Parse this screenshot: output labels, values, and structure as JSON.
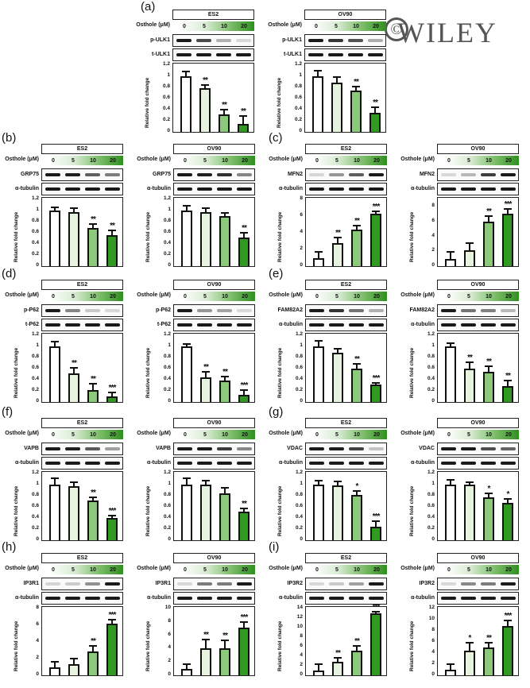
{
  "publisher_watermark": "WILEY",
  "common": {
    "dose_label": "Osthole (μM)",
    "doses": [
      "0",
      "5",
      "10",
      "20"
    ],
    "ylabel": "Relative fold change",
    "bar_colors": [
      "#ffffff",
      "#e6f3de",
      "#8cc97a",
      "#2f9a1f"
    ]
  },
  "chart_data": [
    {
      "panel": "(a)",
      "cell": "ES2",
      "type": "bar",
      "blots": [
        "p-ULK1",
        "t-ULK1"
      ],
      "categories": [
        "0",
        "5",
        "10",
        "20"
      ],
      "values": [
        1.0,
        0.78,
        0.32,
        0.15
      ],
      "errors": [
        0.08,
        0.07,
        0.08,
        0.14
      ],
      "significance": [
        "",
        "**",
        "**",
        "**"
      ],
      "ylim": [
        0,
        1.2
      ],
      "ticks": [
        "0",
        "0.2",
        "0.4",
        "0.6",
        "0.8",
        "1",
        "1.2"
      ],
      "ylabel": "Relative fold change"
    },
    {
      "panel": "(a)",
      "cell": "OV90",
      "type": "bar",
      "blots": [
        "p-ULK1",
        "t-ULK1"
      ],
      "categories": [
        "0",
        "5",
        "10",
        "20"
      ],
      "values": [
        1.0,
        0.88,
        0.75,
        0.34
      ],
      "errors": [
        0.1,
        0.1,
        0.06,
        0.11
      ],
      "significance": [
        "",
        "",
        "**",
        "**"
      ],
      "ylim": [
        0,
        1.2
      ],
      "ticks": [
        "0",
        "0.2",
        "0.4",
        "0.6",
        "0.8",
        "1",
        "1.2"
      ],
      "ylabel": "Relative fold change"
    },
    {
      "panel": "(b)",
      "cell": "ES2",
      "type": "bar",
      "blots": [
        "GRP75",
        "α-tubulin"
      ],
      "categories": [
        "0",
        "5",
        "10",
        "20"
      ],
      "values": [
        1.0,
        0.97,
        0.69,
        0.56
      ],
      "errors": [
        0.06,
        0.07,
        0.07,
        0.08
      ],
      "significance": [
        "",
        "",
        "**",
        "**"
      ],
      "ylim": [
        0,
        1.2
      ],
      "ticks": [
        "0",
        "0.2",
        "0.4",
        "0.6",
        "0.8",
        "1",
        "1.2"
      ],
      "ylabel": "Relative fold change"
    },
    {
      "panel": "(b)",
      "cell": "OV90",
      "type": "bar",
      "blots": [
        "GRP75",
        "α-tubulin"
      ],
      "categories": [
        "0",
        "5",
        "10",
        "20"
      ],
      "values": [
        1.0,
        0.97,
        0.9,
        0.52
      ],
      "errors": [
        0.08,
        0.08,
        0.06,
        0.08
      ],
      "significance": [
        "",
        "",
        "",
        "**"
      ],
      "ylim": [
        0,
        1.2
      ],
      "ticks": [
        "0",
        "0.2",
        "0.4",
        "0.6",
        "0.8",
        "1",
        "1.2"
      ],
      "ylabel": "Relative fold change"
    },
    {
      "panel": "(c)",
      "cell": "ES2",
      "type": "bar",
      "blots": [
        "MFN2",
        "α-tubulin"
      ],
      "categories": [
        "0",
        "5",
        "10",
        "20"
      ],
      "values": [
        1.0,
        2.8,
        4.4,
        6.3
      ],
      "errors": [
        0.7,
        0.6,
        0.5,
        0.3
      ],
      "significance": [
        "",
        "**",
        "**",
        "***"
      ],
      "ylim": [
        0,
        8
      ],
      "ticks": [
        "0",
        "2",
        "4",
        "6",
        "8"
      ],
      "ylabel": "Relative fold change"
    },
    {
      "panel": "(c)",
      "cell": "OV90",
      "type": "bar",
      "blots": [
        "MFN2",
        "α-tubulin"
      ],
      "categories": [
        "0",
        "5",
        "10",
        "20"
      ],
      "values": [
        1.0,
        2.1,
        6.0,
        7.1
      ],
      "errors": [
        0.9,
        1.0,
        0.7,
        0.6
      ],
      "significance": [
        "",
        "",
        "**",
        "***"
      ],
      "ylim": [
        0,
        9
      ],
      "ticks": [
        "0",
        "2",
        "4",
        "6",
        "8"
      ],
      "ylabel": "Relative fold change"
    },
    {
      "panel": "(d)",
      "cell": "ES2",
      "type": "bar",
      "blots": [
        "p-P62",
        "t-P62"
      ],
      "categories": [
        "0",
        "5",
        "10",
        "20"
      ],
      "values": [
        1.0,
        0.52,
        0.22,
        0.1
      ],
      "errors": [
        0.08,
        0.1,
        0.11,
        0.07
      ],
      "significance": [
        "",
        "**",
        "**",
        "***"
      ],
      "ylim": [
        0,
        1.2
      ],
      "ticks": [
        "0",
        "0.2",
        "0.4",
        "0.6",
        "0.8",
        "1",
        "1.2"
      ],
      "ylabel": "Relative fold change"
    },
    {
      "panel": "(d)",
      "cell": "OV90",
      "type": "bar",
      "blots": [
        "p-P62",
        "t-P62"
      ],
      "categories": [
        "0",
        "5",
        "10",
        "20"
      ],
      "values": [
        1.0,
        0.44,
        0.38,
        0.13
      ],
      "errors": [
        0.05,
        0.1,
        0.08,
        0.08
      ],
      "significance": [
        "",
        "**",
        "**",
        "***"
      ],
      "ylim": [
        0,
        1.2
      ],
      "ticks": [
        "0",
        "0.2",
        "0.4",
        "0.6",
        "0.8",
        "1",
        "1.2"
      ],
      "ylabel": "Relative fold change"
    },
    {
      "panel": "(e)",
      "cell": "ES2",
      "type": "bar",
      "blots": [
        "FAM82A2",
        "α-tubulin"
      ],
      "categories": [
        "0",
        "5",
        "10",
        "20"
      ],
      "values": [
        1.0,
        0.89,
        0.6,
        0.32
      ],
      "errors": [
        0.1,
        0.07,
        0.09,
        0.03
      ],
      "significance": [
        "",
        "",
        "**",
        "***"
      ],
      "ylim": [
        0,
        1.2
      ],
      "ticks": [
        "0",
        "0.2",
        "0.4",
        "0.6",
        "0.8",
        "1",
        "1.2"
      ],
      "ylabel": "Relative fold change"
    },
    {
      "panel": "(e)",
      "cell": "OV90",
      "type": "bar",
      "blots": [
        "FAM82A2",
        "α-tubulin"
      ],
      "categories": [
        "0",
        "5",
        "10",
        "20"
      ],
      "values": [
        1.0,
        0.6,
        0.54,
        0.29
      ],
      "errors": [
        0.06,
        0.12,
        0.1,
        0.1
      ],
      "significance": [
        "",
        "**",
        "**",
        "**"
      ],
      "ylim": [
        0,
        1.2
      ],
      "ticks": [
        "0",
        "0.2",
        "0.4",
        "0.6",
        "0.8",
        "1",
        "1.2"
      ],
      "ylabel": "Relative fold change"
    },
    {
      "panel": "(f)",
      "cell": "ES2",
      "type": "bar",
      "blots": [
        "VAPB",
        "α-tubulin"
      ],
      "categories": [
        "0",
        "5",
        "10",
        "20"
      ],
      "values": [
        1.0,
        0.97,
        0.71,
        0.4
      ],
      "errors": [
        0.12,
        0.07,
        0.06,
        0.04
      ],
      "significance": [
        "",
        "",
        "**",
        "***"
      ],
      "ylim": [
        0,
        1.2
      ],
      "ticks": [
        "0",
        "0.2",
        "0.4",
        "0.6",
        "0.8",
        "1",
        "1.2"
      ],
      "ylabel": "Relative fold change"
    },
    {
      "panel": "(f)",
      "cell": "OV90",
      "type": "bar",
      "blots": [
        "VAPB",
        "α-tubulin"
      ],
      "categories": [
        "0",
        "5",
        "10",
        "20"
      ],
      "values": [
        1.0,
        1.0,
        0.85,
        0.51
      ],
      "errors": [
        0.11,
        0.07,
        0.1,
        0.06
      ],
      "significance": [
        "",
        "",
        "",
        "**"
      ],
      "ylim": [
        0,
        1.2
      ],
      "ticks": [
        "0",
        "0.2",
        "0.4",
        "0.6",
        "0.8",
        "1",
        "1.2"
      ],
      "ylabel": "Relative fold change"
    },
    {
      "panel": "(g)",
      "cell": "ES2",
      "type": "bar",
      "blots": [
        "VDAC",
        "α-tubulin"
      ],
      "categories": [
        "0",
        "5",
        "10",
        "20"
      ],
      "values": [
        1.0,
        0.98,
        0.82,
        0.24
      ],
      "errors": [
        0.07,
        0.08,
        0.07,
        0.11
      ],
      "significance": [
        "",
        "",
        "*",
        "***"
      ],
      "ylim": [
        0,
        1.2
      ],
      "ticks": [
        "0",
        "0.2",
        "0.4",
        "0.6",
        "0.8",
        "1",
        "1.2"
      ],
      "ylabel": "Relative fold change"
    },
    {
      "panel": "(g)",
      "cell": "OV90",
      "type": "bar",
      "blots": [
        "VDAC",
        "α-tubulin"
      ],
      "categories": [
        "0",
        "5",
        "10",
        "20"
      ],
      "values": [
        1.0,
        1.0,
        0.77,
        0.67
      ],
      "errors": [
        0.09,
        0.05,
        0.08,
        0.07
      ],
      "significance": [
        "",
        "",
        "*",
        "*"
      ],
      "ylim": [
        0,
        1.2
      ],
      "ticks": [
        "0",
        "0.2",
        "0.4",
        "0.6",
        "0.8",
        "1",
        "1.2"
      ],
      "ylabel": "Relative fold change"
    },
    {
      "panel": "(h)",
      "cell": "ES2",
      "type": "bar",
      "blots": [
        "IP3R1",
        "α-tubulin"
      ],
      "categories": [
        "0",
        "5",
        "10",
        "20"
      ],
      "values": [
        1.0,
        1.3,
        2.9,
        6.2
      ],
      "errors": [
        0.6,
        0.7,
        0.6,
        0.5
      ],
      "significance": [
        "",
        "",
        "**",
        "***"
      ],
      "ylim": [
        0,
        8
      ],
      "ticks": [
        "0",
        "2",
        "4",
        "6",
        "8"
      ],
      "ylabel": "Relative fold change"
    },
    {
      "panel": "(h)",
      "cell": "OV90",
      "type": "bar",
      "blots": [
        "IP3R1",
        "α-tubulin"
      ],
      "categories": [
        "0",
        "5",
        "10",
        "20"
      ],
      "values": [
        1.0,
        4.1,
        4.1,
        7.2
      ],
      "errors": [
        0.7,
        1.2,
        1.1,
        0.8
      ],
      "significance": [
        "",
        "**",
        "**",
        "***"
      ],
      "ylim": [
        0,
        10
      ],
      "ticks": [
        "0",
        "2",
        "4",
        "6",
        "8",
        "10"
      ],
      "ylabel": "Relative fold change"
    },
    {
      "panel": "(i)",
      "cell": "ES2",
      "type": "bar",
      "blots": [
        "IP3R2",
        "α-tubulin"
      ],
      "categories": [
        "0",
        "5",
        "10",
        "20"
      ],
      "values": [
        1.0,
        2.8,
        5.2,
        13.0
      ],
      "errors": [
        1.3,
        0.8,
        1.0,
        0.3
      ],
      "significance": [
        "",
        "**",
        "**",
        "***"
      ],
      "ylim": [
        0,
        14
      ],
      "ticks": [
        "0",
        "2",
        "4",
        "6",
        "8",
        "10",
        "12",
        "14"
      ],
      "ylabel": "Relative fold change"
    },
    {
      "panel": "(i)",
      "cell": "OV90",
      "type": "bar",
      "blots": [
        "IP3R2",
        "α-tubulin"
      ],
      "categories": [
        "0",
        "5",
        "10",
        "20"
      ],
      "values": [
        1.0,
        4.4,
        5.0,
        8.8
      ],
      "errors": [
        1.0,
        1.4,
        0.8,
        1.0
      ],
      "significance": [
        "",
        "*",
        "**",
        "***"
      ],
      "ylim": [
        0,
        12
      ],
      "ticks": [
        "0",
        "2",
        "4",
        "6",
        "8",
        "10",
        "12"
      ],
      "ylabel": "Relative fold change"
    }
  ]
}
